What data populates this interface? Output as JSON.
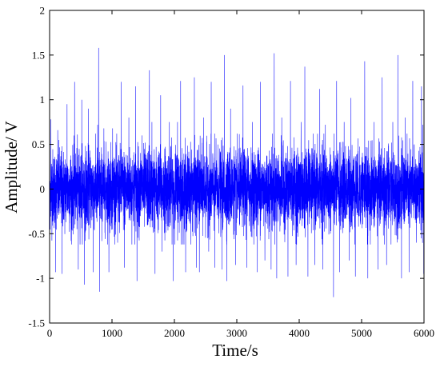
{
  "chart_data": {
    "type": "line",
    "title": "",
    "xlabel": "Time/s",
    "ylabel": "Amplitude/ V",
    "xlim": [
      0,
      6000
    ],
    "ylim": [
      -1.5,
      2
    ],
    "xticks": [
      0,
      1000,
      2000,
      3000,
      4000,
      5000,
      6000
    ],
    "yticks": [
      -1.5,
      -1,
      -0.5,
      0,
      0.5,
      1,
      1.5,
      2
    ],
    "xtick_labels": [
      "0",
      "1000",
      "2000",
      "3000",
      "4000",
      "5000",
      "6000"
    ],
    "ytick_labels": [
      "-1.5",
      "-1",
      "-0.5",
      "0",
      "0.5",
      "1",
      "1.5",
      "2"
    ],
    "grid": false,
    "legend": "none",
    "line_color": "#0000ff",
    "series": [
      {
        "sample_count": 6001,
        "x_range": [
          0,
          6000
        ],
        "baseline_std": 0.22,
        "envelope_typical": [
          -0.5,
          0.5
        ],
        "spikes": [
          {
            "x": 20,
            "y": 0.78
          },
          {
            "x": 95,
            "y": -0.93
          },
          {
            "x": 130,
            "y": 0.66
          },
          {
            "x": 200,
            "y": -0.95
          },
          {
            "x": 280,
            "y": 0.95
          },
          {
            "x": 345,
            "y": -0.58
          },
          {
            "x": 400,
            "y": 1.2
          },
          {
            "x": 460,
            "y": -0.9
          },
          {
            "x": 515,
            "y": 1.0
          },
          {
            "x": 560,
            "y": -1.07
          },
          {
            "x": 620,
            "y": 0.9
          },
          {
            "x": 700,
            "y": -0.93
          },
          {
            "x": 770,
            "y": 0.72
          },
          {
            "x": 785,
            "y": 1.58
          },
          {
            "x": 800,
            "y": -1.15
          },
          {
            "x": 870,
            "y": 0.68
          },
          {
            "x": 950,
            "y": -0.93
          },
          {
            "x": 1010,
            "y": 0.68
          },
          {
            "x": 1090,
            "y": -0.6
          },
          {
            "x": 1150,
            "y": 1.2
          },
          {
            "x": 1200,
            "y": -0.88
          },
          {
            "x": 1270,
            "y": 0.8
          },
          {
            "x": 1380,
            "y": 1.15
          },
          {
            "x": 1400,
            "y": -1.03
          },
          {
            "x": 1480,
            "y": 0.6
          },
          {
            "x": 1600,
            "y": 1.33
          },
          {
            "x": 1640,
            "y": 0.75
          },
          {
            "x": 1690,
            "y": -0.95
          },
          {
            "x": 1780,
            "y": 1.05
          },
          {
            "x": 1800,
            "y": -0.7
          },
          {
            "x": 1920,
            "y": 0.75
          },
          {
            "x": 1980,
            "y": -1.03
          },
          {
            "x": 2050,
            "y": 0.75
          },
          {
            "x": 2100,
            "y": 1.21
          },
          {
            "x": 2180,
            "y": -0.93
          },
          {
            "x": 2320,
            "y": 1.25
          },
          {
            "x": 2350,
            "y": -0.88
          },
          {
            "x": 2400,
            "y": -0.93
          },
          {
            "x": 2470,
            "y": 0.8
          },
          {
            "x": 2550,
            "y": -0.7
          },
          {
            "x": 2590,
            "y": 1.2
          },
          {
            "x": 2650,
            "y": -0.88
          },
          {
            "x": 2760,
            "y": -0.9
          },
          {
            "x": 2800,
            "y": 1.5
          },
          {
            "x": 2840,
            "y": -1.03
          },
          {
            "x": 2900,
            "y": 0.9
          },
          {
            "x": 2980,
            "y": -0.85
          },
          {
            "x": 3100,
            "y": 1.16
          },
          {
            "x": 3160,
            "y": -0.88
          },
          {
            "x": 3250,
            "y": 0.75
          },
          {
            "x": 3330,
            "y": -0.93
          },
          {
            "x": 3380,
            "y": 1.2
          },
          {
            "x": 3450,
            "y": -0.8
          },
          {
            "x": 3550,
            "y": -0.9
          },
          {
            "x": 3600,
            "y": 1.52
          },
          {
            "x": 3640,
            "y": -1.0
          },
          {
            "x": 3720,
            "y": 0.8
          },
          {
            "x": 3820,
            "y": -0.98
          },
          {
            "x": 3860,
            "y": 1.21
          },
          {
            "x": 3950,
            "y": -0.85
          },
          {
            "x": 4030,
            "y": 0.75
          },
          {
            "x": 4090,
            "y": 1.37
          },
          {
            "x": 4140,
            "y": -0.98
          },
          {
            "x": 4250,
            "y": -0.85
          },
          {
            "x": 4330,
            "y": 1.12
          },
          {
            "x": 4380,
            "y": -0.9
          },
          {
            "x": 4420,
            "y": 0.72
          },
          {
            "x": 4550,
            "y": -1.21
          },
          {
            "x": 4600,
            "y": 1.21
          },
          {
            "x": 4650,
            "y": -0.93
          },
          {
            "x": 4720,
            "y": 0.75
          },
          {
            "x": 4800,
            "y": -0.8
          },
          {
            "x": 4830,
            "y": 1.02
          },
          {
            "x": 4900,
            "y": -0.98
          },
          {
            "x": 5050,
            "y": 1.43
          },
          {
            "x": 5100,
            "y": -1.0
          },
          {
            "x": 5200,
            "y": 0.75
          },
          {
            "x": 5260,
            "y": -0.9
          },
          {
            "x": 5330,
            "y": 1.25
          },
          {
            "x": 5400,
            "y": -0.85
          },
          {
            "x": 5500,
            "y": 0.75
          },
          {
            "x": 5580,
            "y": 1.5
          },
          {
            "x": 5640,
            "y": -1.0
          },
          {
            "x": 5700,
            "y": 0.8
          },
          {
            "x": 5760,
            "y": -0.93
          },
          {
            "x": 5820,
            "y": 1.21
          },
          {
            "x": 5880,
            "y": -0.6
          },
          {
            "x": 5960,
            "y": 1.15
          },
          {
            "x": 5980,
            "y": 0.72
          },
          {
            "x": 5995,
            "y": -0.95
          }
        ]
      }
    ]
  }
}
